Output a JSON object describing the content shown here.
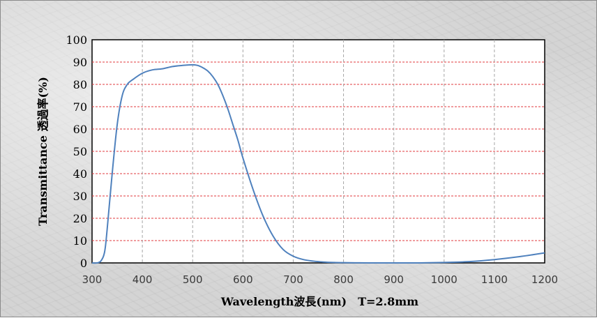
{
  "chart_data": {
    "type": "line",
    "xlabel": "Wavelength波長(nm)　T=2.8mm",
    "ylabel": "Transmittance 透過率(%)",
    "xlim": [
      300,
      1200
    ],
    "ylim": [
      0,
      100
    ],
    "x_ticks": [
      300,
      400,
      500,
      600,
      700,
      800,
      900,
      1000,
      1100,
      1200
    ],
    "y_ticks": [
      0,
      10,
      20,
      30,
      40,
      50,
      60,
      70,
      80,
      90,
      100
    ],
    "x_grid": "dashed gray",
    "y_grid": "dashed red",
    "series": [
      {
        "color": "#4f81bd",
        "x": [
          300,
          310,
          318,
          325,
          330,
          340,
          350,
          360,
          370,
          380,
          400,
          420,
          440,
          460,
          480,
          500,
          510,
          520,
          530,
          540,
          550,
          560,
          570,
          580,
          590,
          600,
          620,
          640,
          660,
          680,
          700,
          720,
          740,
          760,
          780,
          800,
          850,
          900,
          950,
          1000,
          1050,
          1100,
          1150,
          1200
        ],
        "y": [
          0,
          0,
          1,
          5,
          15,
          40,
          62,
          75,
          80,
          82,
          85,
          86.5,
          87,
          88,
          88.5,
          88.8,
          88.5,
          87.5,
          86,
          83.5,
          80,
          75,
          69,
          62,
          55,
          47,
          33,
          21,
          12,
          6,
          3,
          1.5,
          0.8,
          0.4,
          0.2,
          0.1,
          0,
          0,
          0,
          0.2,
          0.6,
          1.5,
          2.8,
          4.5
        ]
      }
    ]
  }
}
